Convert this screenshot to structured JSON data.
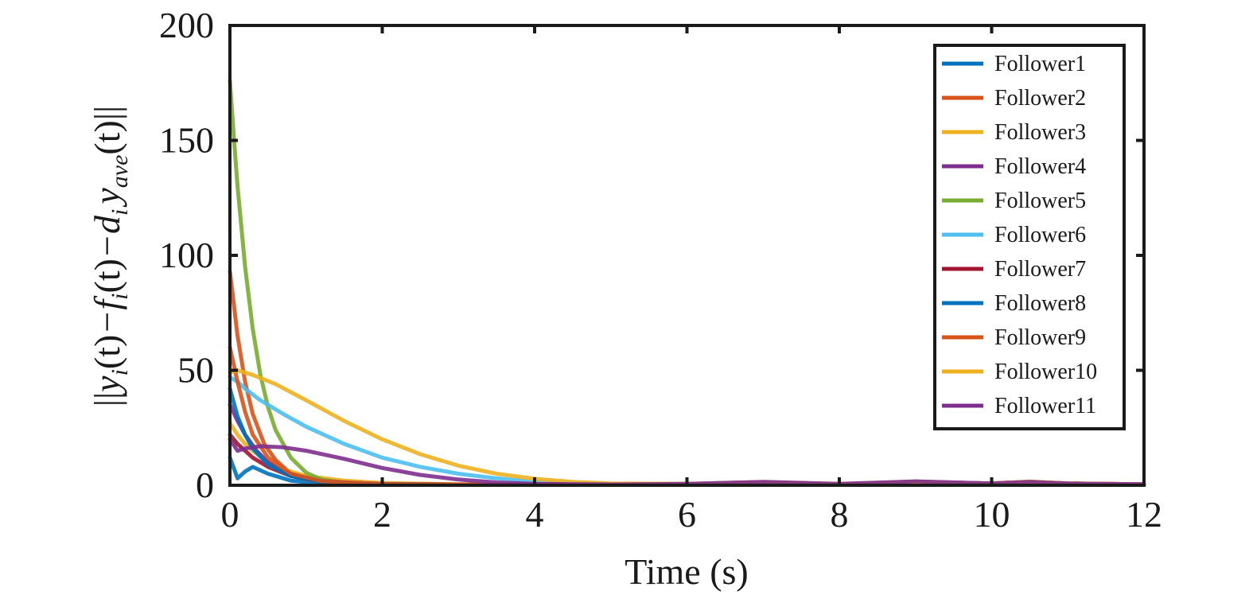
{
  "chart_data": {
    "type": "line",
    "xlabel": "Time (s)",
    "ylabel_parts": {
      "bar_open": "||",
      "y": "y",
      "sub_i": "i",
      "paren_t": "(t)",
      "minus_f": "−f",
      "minus_d": "−d",
      "y_ave": "y",
      "sub_ave": "ave",
      "bar_close": "||"
    },
    "xlim": [
      0,
      12
    ],
    "ylim": [
      0,
      200
    ],
    "xticks": [
      0,
      2,
      4,
      6,
      8,
      10,
      12
    ],
    "yticks": [
      0,
      50,
      100,
      150,
      200
    ],
    "xtick_labels": [
      "0",
      "2",
      "4",
      "6",
      "8",
      "10",
      "12"
    ],
    "ytick_labels": [
      "0",
      "50",
      "100",
      "150",
      "200"
    ],
    "legend_position": "top-right",
    "grid": false,
    "series": [
      {
        "name": "Follower1",
        "color": "#0072BD",
        "x": [
          0,
          0.1,
          0.2,
          0.3,
          0.5,
          0.8,
          1.2,
          2,
          4,
          6,
          7,
          8,
          9,
          10,
          10.5,
          11,
          12
        ],
        "y": [
          12,
          3,
          6,
          8,
          5,
          2,
          0.8,
          0.3,
          0.2,
          0.5,
          1,
          0.5,
          1.2,
          0.6,
          1,
          0.5,
          0.3
        ]
      },
      {
        "name": "Follower2",
        "color": "#D95319",
        "x": [
          0,
          0.1,
          0.2,
          0.3,
          0.45,
          0.6,
          0.8,
          1.0,
          1.5,
          2,
          4,
          6,
          7,
          8,
          9,
          10,
          10.5,
          11,
          12
        ],
        "y": [
          93,
          65,
          45,
          31,
          18,
          11,
          5,
          2.5,
          0.8,
          0.4,
          0.2,
          0.5,
          1.2,
          0.5,
          1.5,
          0.8,
          1.5,
          0.8,
          0.4
        ]
      },
      {
        "name": "Follower3",
        "color": "#EDB120",
        "x": [
          0,
          0.1,
          0.2,
          0.3,
          0.5,
          0.7,
          1.0,
          1.5,
          2,
          3,
          4,
          6,
          7,
          8,
          9,
          10,
          10.5,
          11,
          12
        ],
        "y": [
          27,
          22,
          18,
          15,
          10,
          7,
          4,
          2,
          1,
          0.4,
          0.2,
          0.5,
          1.2,
          0.5,
          1.3,
          0.7,
          1.4,
          0.7,
          0.3
        ]
      },
      {
        "name": "Follower4",
        "color": "#7E2F8E",
        "x": [
          0,
          0.1,
          0.2,
          0.35,
          0.5,
          0.7,
          1.0,
          1.5,
          2,
          3,
          4,
          6,
          7,
          8,
          9,
          10,
          10.5,
          11,
          12
        ],
        "y": [
          35,
          28,
          22,
          15,
          10,
          6,
          3,
          1.2,
          0.6,
          0.3,
          0.2,
          0.6,
          1.4,
          0.5,
          1.6,
          0.8,
          1.5,
          0.8,
          0.4
        ]
      },
      {
        "name": "Follower5",
        "color": "#77AC30",
        "x": [
          0,
          0.05,
          0.1,
          0.2,
          0.3,
          0.4,
          0.5,
          0.6,
          0.8,
          1.0,
          1.2,
          1.5,
          2,
          4,
          6,
          7,
          8,
          9,
          10,
          10.5,
          11,
          12
        ],
        "y": [
          176,
          152,
          130,
          95,
          68,
          48,
          34,
          24,
          12,
          5.5,
          2.5,
          1,
          0.5,
          0.2,
          0.5,
          1.2,
          0.5,
          1.3,
          0.6,
          1.2,
          0.6,
          0.3
        ]
      },
      {
        "name": "Follower6",
        "color": "#4DBEEE",
        "x": [
          0,
          0.1,
          0.2,
          0.4,
          0.7,
          1.0,
          1.5,
          2,
          2.5,
          3,
          3.5,
          4,
          5,
          6,
          7,
          8,
          9,
          10,
          10.5,
          11,
          12
        ],
        "y": [
          47,
          45,
          42,
          37,
          31,
          25.5,
          18,
          12,
          8,
          5,
          3,
          1.5,
          0.6,
          0.6,
          1.3,
          0.5,
          1.4,
          0.7,
          1.4,
          0.7,
          0.3
        ]
      },
      {
        "name": "Follower7",
        "color": "#A2142F",
        "x": [
          0,
          0.1,
          0.2,
          0.3,
          0.5,
          0.8,
          1.2,
          2,
          4,
          6,
          7,
          8,
          9,
          10,
          10.5,
          11,
          12
        ],
        "y": [
          22,
          18,
          15,
          12,
          8,
          4,
          1.5,
          0.5,
          0.2,
          0.5,
          1.2,
          0.5,
          1.4,
          0.7,
          1.3,
          0.7,
          0.3
        ]
      },
      {
        "name": "Follower8",
        "color": "#0072BD",
        "x": [
          0,
          0.1,
          0.2,
          0.3,
          0.5,
          0.8,
          1.2,
          2,
          4,
          6,
          7,
          8,
          9,
          10,
          10.5,
          11,
          12
        ],
        "y": [
          42,
          30,
          22,
          16,
          9,
          4,
          1.5,
          0.5,
          0.2,
          0.5,
          1,
          0.5,
          1.3,
          0.6,
          1.2,
          0.6,
          0.3
        ]
      },
      {
        "name": "Follower9",
        "color": "#D95319",
        "x": [
          0,
          0.1,
          0.2,
          0.3,
          0.5,
          0.8,
          1.2,
          2,
          4,
          6,
          7,
          8,
          9,
          10,
          10.5,
          11,
          12
        ],
        "y": [
          60,
          45,
          32,
          22,
          12,
          5,
          1.8,
          0.5,
          0.2,
          0.5,
          1.1,
          0.5,
          1.5,
          0.8,
          1.6,
          0.8,
          0.4
        ]
      },
      {
        "name": "Follower10",
        "color": "#EDB120",
        "x": [
          0,
          0.1,
          0.3,
          0.6,
          1.0,
          1.5,
          2,
          2.5,
          3,
          3.5,
          4,
          4.5,
          5,
          6,
          7,
          8,
          9,
          10,
          10.5,
          11,
          12
        ],
        "y": [
          49,
          50,
          48,
          44,
          37,
          28,
          20,
          13.5,
          8.5,
          5,
          2.8,
          1.5,
          0.8,
          0.6,
          1.4,
          0.6,
          1.5,
          0.8,
          1.6,
          0.8,
          0.4
        ]
      },
      {
        "name": "Follower11",
        "color": "#7E2F8E",
        "x": [
          0,
          0.1,
          0.2,
          0.4,
          0.7,
          1.0,
          1.5,
          2,
          2.5,
          3,
          3.5,
          4,
          5,
          6,
          7,
          8,
          9,
          10,
          10.5,
          11,
          12
        ],
        "y": [
          20,
          15,
          16,
          17,
          16.5,
          15,
          11.5,
          7.5,
          4.5,
          2.5,
          1.2,
          0.6,
          0.3,
          0.6,
          1.5,
          0.6,
          1.7,
          0.8,
          1.5,
          0.8,
          0.4
        ]
      }
    ]
  }
}
